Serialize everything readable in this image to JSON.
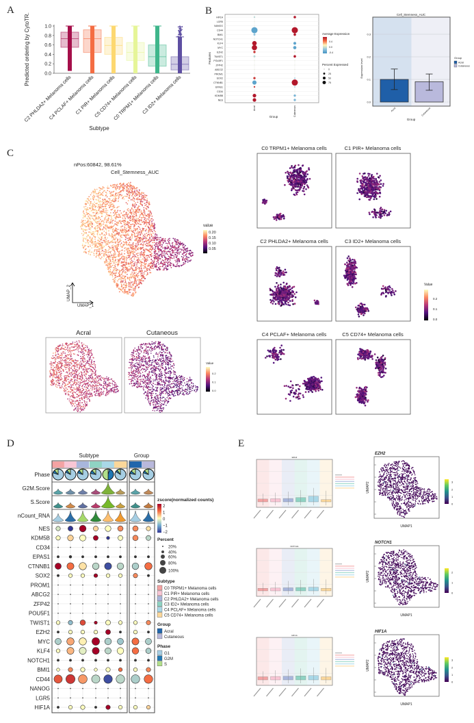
{
  "panel_labels": [
    "A",
    "B",
    "C",
    "D",
    "E"
  ],
  "panel_a": {
    "type": "box",
    "ylabel": "Predicted ordering by CytoTR.",
    "xlabel": "Subtype",
    "yticks": [
      "0.0",
      "0.2",
      "0.4",
      "0.6",
      "0.8",
      "1.0"
    ],
    "ylim": [
      0,
      1
    ],
    "categories": [
      "C2 PHLDA2+ Melanoma cells",
      "C4 PCLAF+ Melanoma cells",
      "C1 PIR+ Melanoma cells",
      "C5 CD74+ Melanoma cells",
      "C0 TRPM1+ Melanoma cells",
      "C3 ID2+ Melanoma cells"
    ],
    "median": [
      0.73,
      0.73,
      0.59,
      0.44,
      0.35,
      0.19
    ],
    "q1": [
      0.55,
      0.44,
      0.4,
      0.27,
      0.15,
      0.07
    ],
    "q3": [
      0.87,
      0.92,
      0.76,
      0.65,
      0.6,
      0.35
    ],
    "whisker_low": [
      0.05,
      0.0,
      0.0,
      0.0,
      0.0,
      0.0
    ],
    "whisker_high": [
      1.0,
      1.0,
      1.0,
      1.0,
      1.0,
      0.77
    ],
    "colors": [
      "#a50f4a",
      "#f46d43",
      "#fdd870",
      "#e6f598",
      "#3fb68b",
      "#5e4fa2"
    ]
  },
  "panel_b": {
    "dotplot": {
      "ylabel": "Features",
      "xlabel": "Group",
      "groups": [
        "Acral",
        "Cutaneous"
      ],
      "features": [
        "HIF1A",
        "LGR5",
        "NANOG",
        "CD44",
        "BMI1",
        "NOTCH1",
        "KLF4",
        "MYC",
        "EZH2",
        "TWIST1",
        "POU5F1",
        "ZFP42",
        "ABCG2",
        "PROM1",
        "SOX2",
        "CTNNB1",
        "EPAS1",
        "CD34",
        "KDM5B",
        "NES"
      ],
      "avg_expression": {
        "Acral": [
          -0.1,
          0,
          0,
          -0.4,
          -0.2,
          0,
          0.7,
          0.7,
          0.6,
          -0.1,
          0,
          0,
          0,
          0,
          0.6,
          -0.4,
          0.6,
          0,
          0.7,
          0.7
        ],
        "Cutaneous": [
          0.7,
          0,
          0,
          0.7,
          0.7,
          0,
          -0.4,
          -0.4,
          0,
          0.7,
          0,
          0,
          0,
          0,
          -0.2,
          0.7,
          -0.2,
          0,
          -0.3,
          -0.3
        ]
      },
      "pct_expressed": {
        "Acral": [
          5,
          0,
          0,
          75,
          8,
          1,
          40,
          55,
          10,
          8,
          0,
          0,
          0,
          0,
          10,
          35,
          5,
          0,
          25,
          25
        ],
        "Cutaneous": [
          12,
          0,
          0,
          75,
          12,
          1,
          15,
          20,
          3,
          12,
          0,
          0,
          0,
          0,
          3,
          75,
          3,
          0,
          10,
          10
        ]
      },
      "legend_color_title": "Average Expression",
      "legend_color_ticks": [
        "0.4",
        "0.0",
        "-0.4"
      ],
      "legend_size_title": "Percent Expressed",
      "legend_size_ticks": [
        "0",
        "25",
        "50",
        "75"
      ]
    },
    "barplot": {
      "title": "Cell_Stemness_AUC",
      "ylabel": "Expression level",
      "xlabel": "Group",
      "yticks": [
        "0.0",
        "0.1",
        "0.2",
        "0.3"
      ],
      "ylim": [
        0,
        0.34
      ],
      "categories": [
        "Acral",
        "Cutaneous"
      ],
      "values": [
        0.1,
        0.09
      ],
      "err_low": [
        0.055,
        0.052
      ],
      "err_high": [
        0.146,
        0.124
      ],
      "colors": [
        "#1f5fa8",
        "#b9b9dc"
      ],
      "legend_title": "Group"
    }
  },
  "panel_c": {
    "main_title": "nPos:60842, 98.61%",
    "main_subtitle": "Cell_Stemness_AUC",
    "main_legend_title": "value",
    "main_legend_ticks": [
      "0.20",
      "0.15",
      "0.10",
      "0.05"
    ],
    "umap_x": "UMAP_1",
    "umap_y": "UMAP_2",
    "split_titles": [
      "Acral",
      "Cutaneous"
    ],
    "split_legend_title": "Value",
    "split_legend_ticks": [
      "0.2",
      "0.1",
      "0.0"
    ],
    "subtype_titles": [
      "C0 TRPM1+ Melanoma cells",
      "C1 PIR+ Melanoma cells",
      "C2 PHLDA2+ Melanoma cells",
      "C3 ID2+ Melanoma cells",
      "C4 PCLAF+ Melanoma cells",
      "C5 CD74+ Melanoma cells"
    ],
    "subtype_legend_title": "Value",
    "subtype_legend_ticks": [
      "0.2",
      "0.1",
      "0.0"
    ],
    "colormap": [
      "#000004",
      "#51127c",
      "#b73779",
      "#fc8961",
      "#fcfdbf"
    ]
  },
  "panel_d": {
    "header_subtype": "Subtype",
    "header_group": "Group",
    "row_labels": [
      "Phase",
      "G2M.Score",
      "S.Score",
      "nCount_RNA"
    ],
    "genes": [
      "NES",
      "KDM5B",
      "CD34",
      "EPAS1",
      "CTNNB1",
      "SOX2",
      "PROM1",
      "ABCG2",
      "ZFP42",
      "POU5F1",
      "TWIST1",
      "EZH2",
      "MYC",
      "KLF4",
      "NOTCH1",
      "BMI1",
      "CD44",
      "NANOG",
      "LGR5",
      "HIF1A"
    ],
    "columns": [
      "C0 TRPM1+ Melanoma cells",
      "C1 PIR+ Melanoma cells",
      "C2 PHLDA2+ Melanoma cells",
      "C3 ID2+ Melanoma cells",
      "C4 PCLAF+ Melanoma cells",
      "C5 CD74+ Melanoma cells",
      "Acral",
      "Cutaneous"
    ],
    "zscore": [
      [
        -0.3,
        -2,
        2,
        0.3,
        0,
        0.8,
        0.8,
        0.2
      ],
      [
        0,
        0.3,
        0,
        2,
        -2,
        0,
        0.8,
        -0.5
      ],
      [
        0,
        0,
        0,
        0,
        0,
        0,
        0,
        0
      ],
      [
        0,
        0,
        0,
        0,
        0,
        0,
        0,
        0
      ],
      [
        2,
        1,
        0.2,
        -0.5,
        -1.8,
        -0.5,
        -0.6,
        1
      ],
      [
        0,
        0,
        0,
        2,
        0,
        0,
        0.8,
        0
      ],
      [
        0,
        0,
        0,
        0,
        0,
        0,
        0,
        0
      ],
      [
        0,
        0,
        0,
        0,
        0,
        0,
        0,
        0
      ],
      [
        0,
        0,
        0,
        0,
        0,
        0,
        0,
        0
      ],
      [
        0,
        0,
        0,
        0,
        0,
        0,
        0,
        0
      ],
      [
        0,
        -0.8,
        1.3,
        2,
        0,
        0,
        0,
        0.8
      ],
      [
        0,
        0,
        0,
        0,
        2,
        0,
        0,
        0
      ],
      [
        -0.6,
        0.6,
        0.1,
        2,
        -0.6,
        -0.7,
        1,
        -0.6
      ],
      [
        0,
        0.5,
        -0.2,
        2,
        -0.5,
        0,
        1,
        -0.6
      ],
      [
        0,
        0,
        0,
        0,
        0,
        0,
        0,
        0
      ],
      [
        0,
        0.8,
        0,
        0,
        0,
        1,
        0,
        0.8
      ],
      [
        1.2,
        1.5,
        0.7,
        -0.5,
        -1.8,
        -0.5,
        -0.6,
        1
      ],
      [
        0,
        0,
        0,
        0,
        0,
        0,
        0,
        0
      ],
      [
        0,
        0,
        0,
        0,
        0,
        0,
        0,
        0
      ],
      [
        0,
        0,
        0,
        0,
        2,
        0,
        0,
        0.3
      ]
    ],
    "percent": [
      [
        20,
        25,
        45,
        25,
        35,
        30,
        30,
        20
      ],
      [
        20,
        35,
        40,
        25,
        10,
        25,
        30,
        25
      ],
      [
        2,
        2,
        2,
        2,
        2,
        2,
        2,
        2
      ],
      [
        5,
        7,
        5,
        5,
        5,
        5,
        5,
        5
      ],
      [
        40,
        50,
        55,
        45,
        50,
        45,
        45,
        55
      ],
      [
        5,
        15,
        15,
        15,
        15,
        15,
        20,
        5
      ],
      [
        1,
        1,
        1,
        1,
        1,
        1,
        1,
        1
      ],
      [
        1,
        1,
        1,
        1,
        1,
        1,
        1,
        1
      ],
      [
        1,
        1,
        1,
        1,
        1,
        1,
        1,
        1
      ],
      [
        1,
        1,
        1,
        1,
        1,
        1,
        1,
        1
      ],
      [
        15,
        20,
        30,
        10,
        25,
        15,
        15,
        20
      ],
      [
        5,
        15,
        15,
        15,
        25,
        5,
        15,
        5
      ],
      [
        40,
        55,
        55,
        60,
        45,
        40,
        50,
        40
      ],
      [
        15,
        50,
        50,
        50,
        40,
        45,
        45,
        30
      ],
      [
        5,
        5,
        5,
        5,
        5,
        5,
        5,
        5
      ],
      [
        10,
        20,
        20,
        10,
        20,
        15,
        15,
        20
      ],
      [
        70,
        85,
        80,
        70,
        75,
        75,
        75,
        75
      ],
      [
        1,
        1,
        1,
        1,
        1,
        1,
        1,
        1
      ],
      [
        1,
        1,
        1,
        1,
        1,
        1,
        1,
        1
      ],
      [
        5,
        15,
        20,
        5,
        20,
        15,
        15,
        15
      ]
    ],
    "phase_fractions": {
      "labels": [
        "G1",
        "G2M",
        "S"
      ],
      "values": [
        [
          0.8,
          0.08,
          0.12
        ],
        [
          0.82,
          0.07,
          0.11
        ],
        [
          0.8,
          0.08,
          0.12
        ],
        [
          0.78,
          0.1,
          0.12
        ],
        [
          0.05,
          0.45,
          0.5
        ],
        [
          0.84,
          0.06,
          0.1
        ],
        [
          0.78,
          0.08,
          0.14
        ],
        [
          0.8,
          0.07,
          0.13
        ]
      ]
    },
    "legend_zscore_title": "zscore(normalized counts)",
    "legend_zscore_ticks": [
      "2",
      "1",
      "0",
      "−1",
      "−2"
    ],
    "legend_percent_title": "Percent",
    "legend_percent_ticks": [
      "20%",
      "40%",
      "60%",
      "80%",
      "100%"
    ],
    "legend_subtype_title": "Subtype",
    "legend_subtype_items": [
      "C0 TRPM1+ Melanoma cells",
      "C1 PIR+ Melanoma cells",
      "C2 PHLDA2+ Melanoma cells",
      "C3 ID2+ Melanoma cells",
      "C4 PCLAF+ Melanoma cells",
      "C5 CD74+ Melanoma cells"
    ],
    "subtype_colors": [
      "#f4a3a3",
      "#f9c6d5",
      "#a8b6dc",
      "#8fd3c3",
      "#a9d8e8",
      "#fbd79a"
    ],
    "legend_group_title": "Group",
    "legend_group_items": [
      "Acral",
      "Cutaneous"
    ],
    "group_colors": [
      "#2166ac",
      "#b8b8dc"
    ],
    "legend_phase_title": "Phase",
    "legend_phase_items": [
      "G1",
      "G2M",
      "S"
    ],
    "phase_colors": [
      "#a6cee3",
      "#1f78b4",
      "#b2df8a"
    ]
  },
  "panel_e": {
    "genes": [
      "EZH2",
      "NOTCH1",
      "HIF1A"
    ],
    "umap_x": "UMAP1",
    "umap_y": "UMAP2",
    "colorbar_ticks": [
      [
        "0",
        "1",
        "2",
        "3"
      ],
      [
        "0",
        "1",
        "2"
      ],
      [
        "0",
        "1",
        "2",
        "3"
      ]
    ],
    "colormap": [
      "#440154",
      "#3b528b",
      "#21918c",
      "#5ec962",
      "#fde725"
    ],
    "bar_values": [
      [
        0.05,
        0.06,
        0.07,
        0.1,
        0.15,
        0.03
      ],
      [
        0.04,
        0.05,
        0.06,
        0.07,
        0.08,
        0.04
      ],
      [
        0.06,
        0.07,
        0.08,
        0.09,
        0.1,
        0.06
      ]
    ],
    "bar_colors": [
      "#f4a3a3",
      "#f9c6d5",
      "#a8b6dc",
      "#8fd3c3",
      "#a9d8e8",
      "#fbd79a"
    ]
  }
}
